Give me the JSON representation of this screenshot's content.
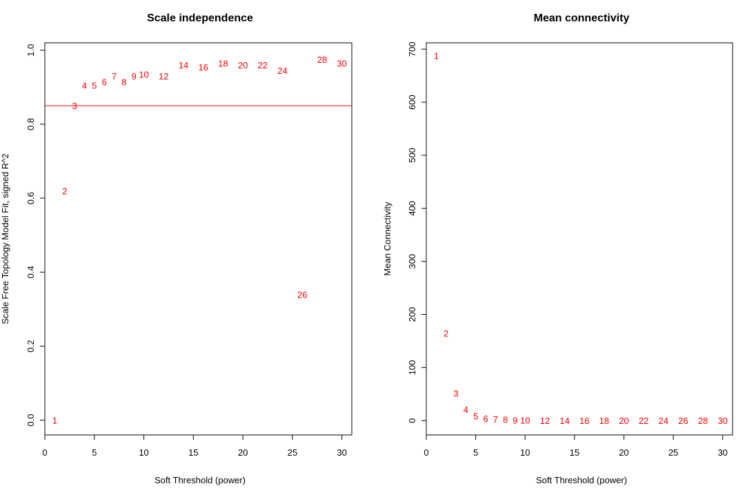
{
  "chart_data": [
    {
      "type": "scatter",
      "title": "Scale independence",
      "xlabel": "Soft Threshold (power)",
      "ylabel": "Scale Free Topology Model Fit, signed R^2",
      "xlim": [
        0,
        31
      ],
      "ylim": [
        -0.04,
        1.02
      ],
      "xticks": [
        0,
        5,
        10,
        15,
        20,
        25,
        30
      ],
      "yticks": [
        0.0,
        0.2,
        0.4,
        0.6,
        0.8,
        1.0
      ],
      "ytick_labels": [
        "0.0",
        "0.2",
        "0.4",
        "0.6",
        "0.8",
        "1.0"
      ],
      "point_color": "#ff0000",
      "hline": {
        "y": 0.85,
        "color": "#ff0000"
      },
      "points": [
        {
          "x": 1,
          "y": 0.0,
          "label": "1"
        },
        {
          "x": 2,
          "y": 0.62,
          "label": "2"
        },
        {
          "x": 3,
          "y": 0.85,
          "label": "3"
        },
        {
          "x": 4,
          "y": 0.905,
          "label": "4"
        },
        {
          "x": 5,
          "y": 0.905,
          "label": "5"
        },
        {
          "x": 6,
          "y": 0.915,
          "label": "6"
        },
        {
          "x": 7,
          "y": 0.93,
          "label": "7"
        },
        {
          "x": 8,
          "y": 0.915,
          "label": "8"
        },
        {
          "x": 9,
          "y": 0.93,
          "label": "9"
        },
        {
          "x": 10,
          "y": 0.935,
          "label": "10"
        },
        {
          "x": 12,
          "y": 0.93,
          "label": "12"
        },
        {
          "x": 14,
          "y": 0.96,
          "label": "14"
        },
        {
          "x": 16,
          "y": 0.955,
          "label": "16"
        },
        {
          "x": 18,
          "y": 0.965,
          "label": "18"
        },
        {
          "x": 20,
          "y": 0.96,
          "label": "20"
        },
        {
          "x": 22,
          "y": 0.96,
          "label": "22"
        },
        {
          "x": 24,
          "y": 0.945,
          "label": "24"
        },
        {
          "x": 26,
          "y": 0.34,
          "label": "26"
        },
        {
          "x": 28,
          "y": 0.975,
          "label": "28"
        },
        {
          "x": 30,
          "y": 0.965,
          "label": "30"
        }
      ]
    },
    {
      "type": "scatter",
      "title": "Mean connectivity",
      "xlabel": "Soft Threshold (power)",
      "ylabel": "Mean Connectivity",
      "xlim": [
        0,
        31
      ],
      "ylim": [
        -27,
        712
      ],
      "xticks": [
        0,
        5,
        10,
        15,
        20,
        25,
        30
      ],
      "yticks": [
        0,
        100,
        200,
        300,
        400,
        500,
        600,
        700
      ],
      "ytick_labels": [
        "0",
        "100",
        "200",
        "300",
        "400",
        "500",
        "600",
        "700"
      ],
      "point_color": "#ff0000",
      "points": [
        {
          "x": 1,
          "y": 688,
          "label": "1"
        },
        {
          "x": 2,
          "y": 165,
          "label": "2"
        },
        {
          "x": 3,
          "y": 52,
          "label": "3"
        },
        {
          "x": 4,
          "y": 21,
          "label": "4"
        },
        {
          "x": 5,
          "y": 9,
          "label": "5"
        },
        {
          "x": 6,
          "y": 4,
          "label": "6"
        },
        {
          "x": 7,
          "y": 3,
          "label": "7"
        },
        {
          "x": 8,
          "y": 2,
          "label": "8"
        },
        {
          "x": 9,
          "y": 1,
          "label": "9"
        },
        {
          "x": 10,
          "y": 1,
          "label": "10"
        },
        {
          "x": 12,
          "y": 0,
          "label": "12"
        },
        {
          "x": 14,
          "y": 0,
          "label": "14"
        },
        {
          "x": 16,
          "y": 0,
          "label": "16"
        },
        {
          "x": 18,
          "y": 0,
          "label": "18"
        },
        {
          "x": 20,
          "y": 0,
          "label": "20"
        },
        {
          "x": 22,
          "y": 0,
          "label": "22"
        },
        {
          "x": 24,
          "y": 0,
          "label": "24"
        },
        {
          "x": 26,
          "y": 0,
          "label": "26"
        },
        {
          "x": 28,
          "y": 0,
          "label": "28"
        },
        {
          "x": 30,
          "y": 0,
          "label": "30"
        }
      ]
    }
  ]
}
